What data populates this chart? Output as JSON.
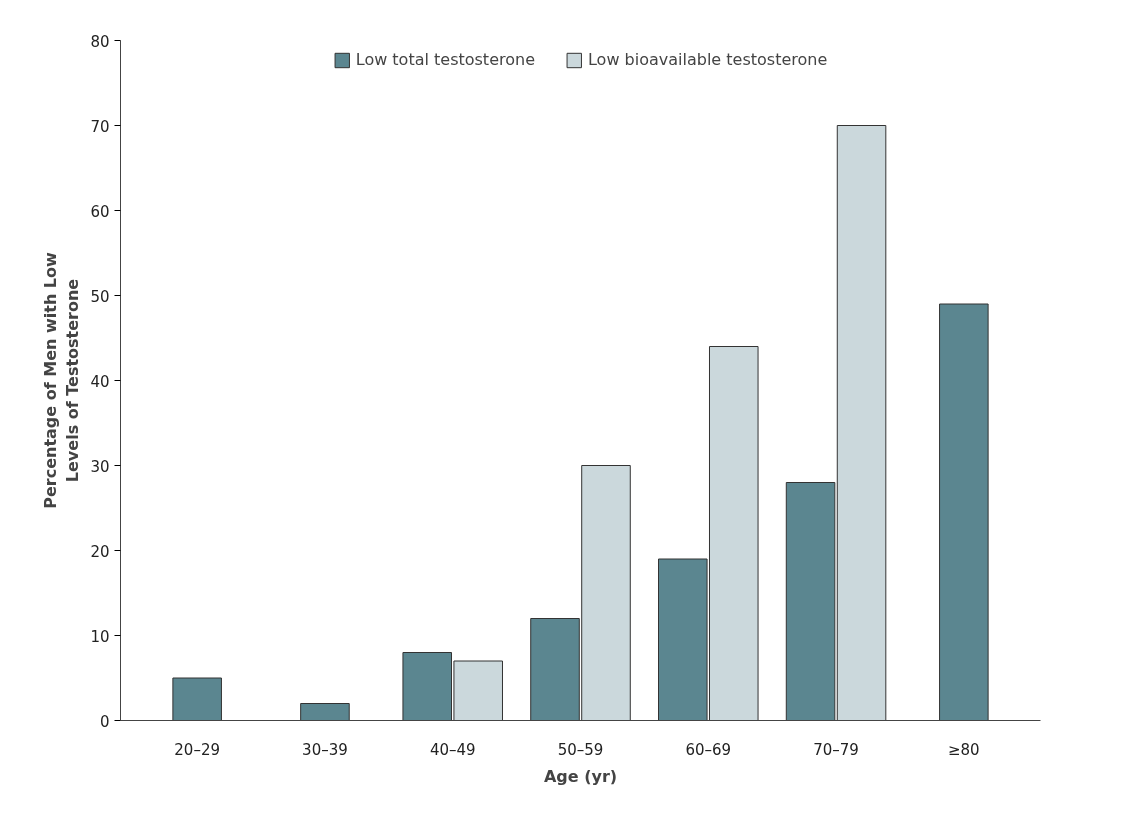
{
  "chart_data": {
    "type": "bar",
    "categories": [
      "20–29",
      "30–39",
      "40–49",
      "50–59",
      "60–69",
      "70–79",
      "≥80"
    ],
    "series": [
      {
        "name": "Low total testosterone",
        "color": "#5b8690",
        "values": [
          5,
          2,
          8,
          12,
          19,
          28,
          49
        ]
      },
      {
        "name": "Low bioavailable testosterone",
        "color": "#cbd8dc",
        "values": [
          null,
          null,
          7,
          30,
          44,
          70,
          null
        ]
      }
    ],
    "xlabel": "Age (yr)",
    "ylabel": "Percentage of Men with Low Levels of Testosterone",
    "ylim": [
      0,
      80
    ],
    "yticks": [
      0,
      10,
      20,
      30,
      40,
      50,
      60,
      70,
      80
    ],
    "grid": false,
    "legend": "top"
  }
}
